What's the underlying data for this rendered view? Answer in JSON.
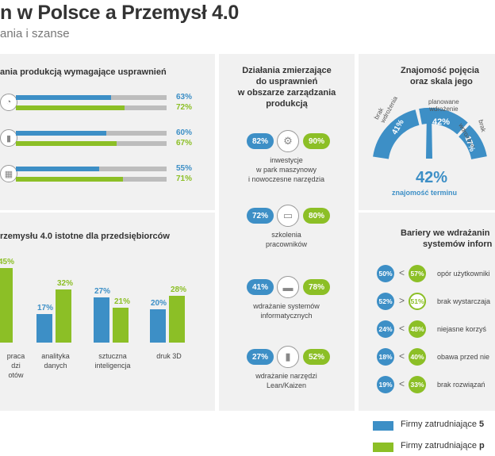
{
  "header": {
    "title": "n w Polsce a Przemysł 4.0",
    "subtitle": "ania i szanse"
  },
  "colors": {
    "blue": "#3d8fc6",
    "green": "#8cbf26",
    "panel": "#f1f1f1"
  },
  "panel_improvements": {
    "title": "ania produkcją wymagające usprawnień",
    "rows": [
      {
        "icon": "gauge-icon",
        "blue_pct": "63%",
        "green_pct": "72%",
        "blue": 63,
        "green": 72
      },
      {
        "icon": "battery-icon",
        "blue_pct": "60%",
        "green_pct": "67%",
        "blue": 60,
        "green": 67
      },
      {
        "icon": "calendar-icon",
        "blue_pct": "55%",
        "green_pct": "71%",
        "blue": 55,
        "green": 71
      }
    ]
  },
  "panel_technologies": {
    "title": "rzemysłu 4.0 istotne dla przedsiębiorców",
    "groups": [
      {
        "label_lines": [
          "praca",
          "dzi",
          "otów"
        ],
        "blue": null,
        "green": 45,
        "blue_label": "",
        "green_label": "45%"
      },
      {
        "label_lines": [
          "analityka",
          "danych"
        ],
        "blue": 17,
        "green": 32,
        "blue_label": "17%",
        "green_label": "32%"
      },
      {
        "label_lines": [
          "sztuczna",
          "inteligencja"
        ],
        "blue": 27,
        "green": 21,
        "blue_label": "27%",
        "green_label": "21%"
      },
      {
        "label_lines": [
          "druk 3D"
        ],
        "blue": 20,
        "green": 28,
        "blue_label": "20%",
        "green_label": "28%"
      }
    ]
  },
  "panel_actions": {
    "title_lines": [
      "Działania zmierzające",
      "do usprawnień",
      "w obszarze zarządzania",
      "produkcją"
    ],
    "items": [
      {
        "blue": "82%",
        "green": "90%",
        "icon": "gears-icon",
        "desc": [
          "inwestycje",
          "w park maszynowy",
          "i nowoczesne narzędzia"
        ]
      },
      {
        "blue": "72%",
        "green": "80%",
        "icon": "book-icon",
        "desc": [
          "szkolenia",
          "pracowników"
        ]
      },
      {
        "blue": "41%",
        "green": "78%",
        "icon": "laptop-icon",
        "desc": [
          "wdrażanie systemów",
          "informatycznych"
        ]
      },
      {
        "blue": "27%",
        "green": "52%",
        "icon": "bar-chart-icon",
        "desc": [
          "wdrażanie narzędzi",
          "Lean/Kaizen"
        ]
      }
    ]
  },
  "panel_awareness": {
    "title_lines": [
      "Znajomość pojęcia",
      "oraz skala jego"
    ],
    "segments": [
      {
        "label_lines": [
          "brak",
          "wdrożenia"
        ],
        "value": "41%",
        "share": 41
      },
      {
        "label_lines": [
          "planowane",
          "wdrożenie"
        ],
        "value": "42%",
        "share": 42
      },
      {
        "label_lines": [
          "wdrożone"
        ],
        "value": "17%",
        "share": 17
      }
    ],
    "cut_label": "brak",
    "gauge_value": "42%",
    "gauge_caption": "znajomość terminu"
  },
  "panel_barriers": {
    "title_lines": [
      "Bariery we wdrażanin",
      "systemów inforn"
    ],
    "rows": [
      {
        "blue": "50%",
        "sign": "<",
        "green": "57%",
        "green_style": "filled",
        "label": "opór użytkowniki"
      },
      {
        "blue": "52%",
        "sign": ">",
        "green": "51%",
        "green_style": "outline",
        "label": "brak wystarczaja"
      },
      {
        "blue": "24%",
        "sign": "<",
        "green": "48%",
        "green_style": "filled",
        "label": "niejasne korzyś"
      },
      {
        "blue": "18%",
        "sign": "<",
        "green": "40%",
        "green_style": "filled",
        "label": "obawa przed nie"
      },
      {
        "blue": "19%",
        "sign": "<",
        "green": "33%",
        "green_style": "filled",
        "label": "brak rozwiązań"
      }
    ]
  },
  "legend": {
    "items": [
      {
        "prefix": "Firmy zatrudniające ",
        "bold": "5"
      },
      {
        "prefix": "Firmy zatrudniające ",
        "bold": "p"
      }
    ]
  }
}
